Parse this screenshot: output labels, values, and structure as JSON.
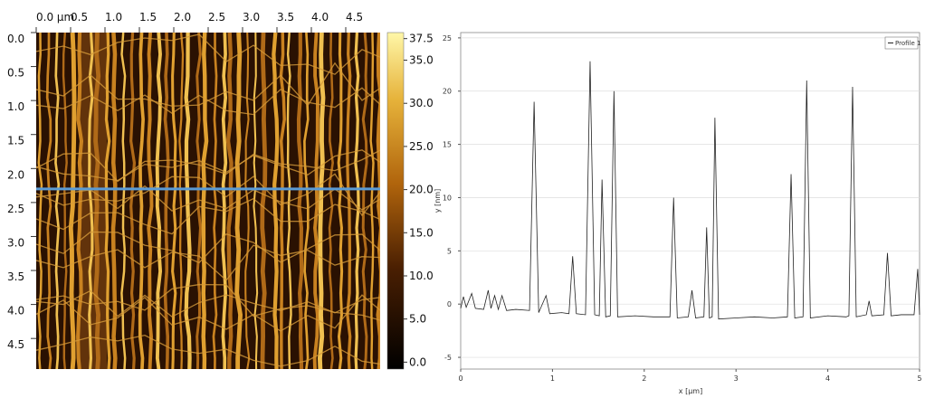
{
  "chart_data": [
    {
      "type": "image",
      "xlim": [
        0,
        5
      ],
      "xticks": [
        {
          "value": 0,
          "label": "0.0 µm"
        },
        0.5,
        {
          "value": 1,
          "label": "1.0"
        },
        1.5,
        {
          "value": 2,
          "label": "2.0"
        },
        2.5,
        {
          "value": 3,
          "label": "3.0"
        },
        3.5,
        {
          "value": 4,
          "label": "4.0"
        },
        4.5
      ],
      "ylim": [
        0,
        4.95
      ],
      "yticks": [
        {
          "value": 0,
          "label": "0.0"
        },
        0.5,
        {
          "value": 1,
          "label": "1.0"
        },
        1.5,
        {
          "value": 2,
          "label": "2.0"
        },
        2.5,
        {
          "value": 3,
          "label": "3.0"
        },
        3.5,
        {
          "value": 4,
          "label": "4.0"
        },
        4.5
      ],
      "profile_y": 2.3,
      "profile_color": "#5b9bd5",
      "colorbar": {
        "lim": [
          -0.8,
          38.2
        ],
        "ticks": [
          {
            "value": 37.5,
            "label": "37.5"
          },
          {
            "value": 35,
            "label": "35.0"
          },
          {
            "value": 30,
            "label": "30.0"
          },
          {
            "value": 25,
            "label": "25.0"
          },
          {
            "value": 20,
            "label": "20.0"
          },
          {
            "value": 15,
            "label": "15.0"
          },
          {
            "value": 10,
            "label": "10.0"
          },
          {
            "value": 5,
            "label": "5.0"
          },
          {
            "value": 0,
            "label": "0.0"
          }
        ]
      }
    },
    {
      "type": "line",
      "xlabel": "x [µm]",
      "ylabel": "y [nm]",
      "grid": true,
      "legend": "top-right",
      "xlim": [
        0,
        5
      ],
      "xticks": [
        0,
        1,
        2,
        3,
        4,
        5
      ],
      "ylim": [
        -6.1,
        25.5
      ],
      "yticks": [
        -5,
        0,
        5,
        10,
        15,
        20,
        25
      ],
      "x": [
        0,
        0.03,
        0.06,
        0.12,
        0.16,
        0.25,
        0.3,
        0.33,
        0.37,
        0.41,
        0.45,
        0.5,
        0.6,
        0.75,
        0.8,
        0.85,
        0.93,
        0.97,
        1.1,
        1.18,
        1.22,
        1.26,
        1.36,
        1.41,
        1.46,
        1.51,
        1.54,
        1.58,
        1.63,
        1.67,
        1.71,
        1.9,
        2.1,
        2.28,
        2.32,
        2.36,
        2.48,
        2.52,
        2.56,
        2.65,
        2.68,
        2.71,
        2.74,
        2.77,
        2.81,
        3.0,
        3.2,
        3.4,
        3.56,
        3.6,
        3.64,
        3.73,
        3.77,
        3.81,
        4.0,
        4.2,
        4.23,
        4.27,
        4.31,
        4.42,
        4.45,
        4.48,
        4.61,
        4.65,
        4.69,
        4.8,
        4.94,
        4.98,
        5.0
      ],
      "series": [
        {
          "name": "Profile 1",
          "color": "#222222",
          "values": [
            -0.4,
            0.7,
            -0.3,
            1.0,
            -0.4,
            -0.5,
            1.3,
            -0.4,
            0.8,
            -0.5,
            0.8,
            -0.6,
            -0.5,
            -0.6,
            19,
            -0.8,
            0.8,
            -0.9,
            -0.8,
            -0.9,
            4.5,
            -0.9,
            -1.0,
            22.8,
            -1.0,
            -1.1,
            11.7,
            -1.2,
            -1.1,
            20,
            -1.2,
            -1.1,
            -1.2,
            -1.2,
            10,
            -1.3,
            -1.2,
            1.3,
            -1.3,
            -1.2,
            7.2,
            -1.3,
            -1.2,
            17.5,
            -1.4,
            -1.3,
            -1.2,
            -1.3,
            -1.2,
            12.2,
            -1.3,
            -1.2,
            21,
            -1.3,
            -1.1,
            -1.2,
            -1.1,
            20.4,
            -1.2,
            -1.0,
            0.3,
            -1.1,
            -1.0,
            4.8,
            -1.1,
            -1.0,
            -1.0,
            3.3,
            -1.0
          ]
        }
      ]
    }
  ]
}
